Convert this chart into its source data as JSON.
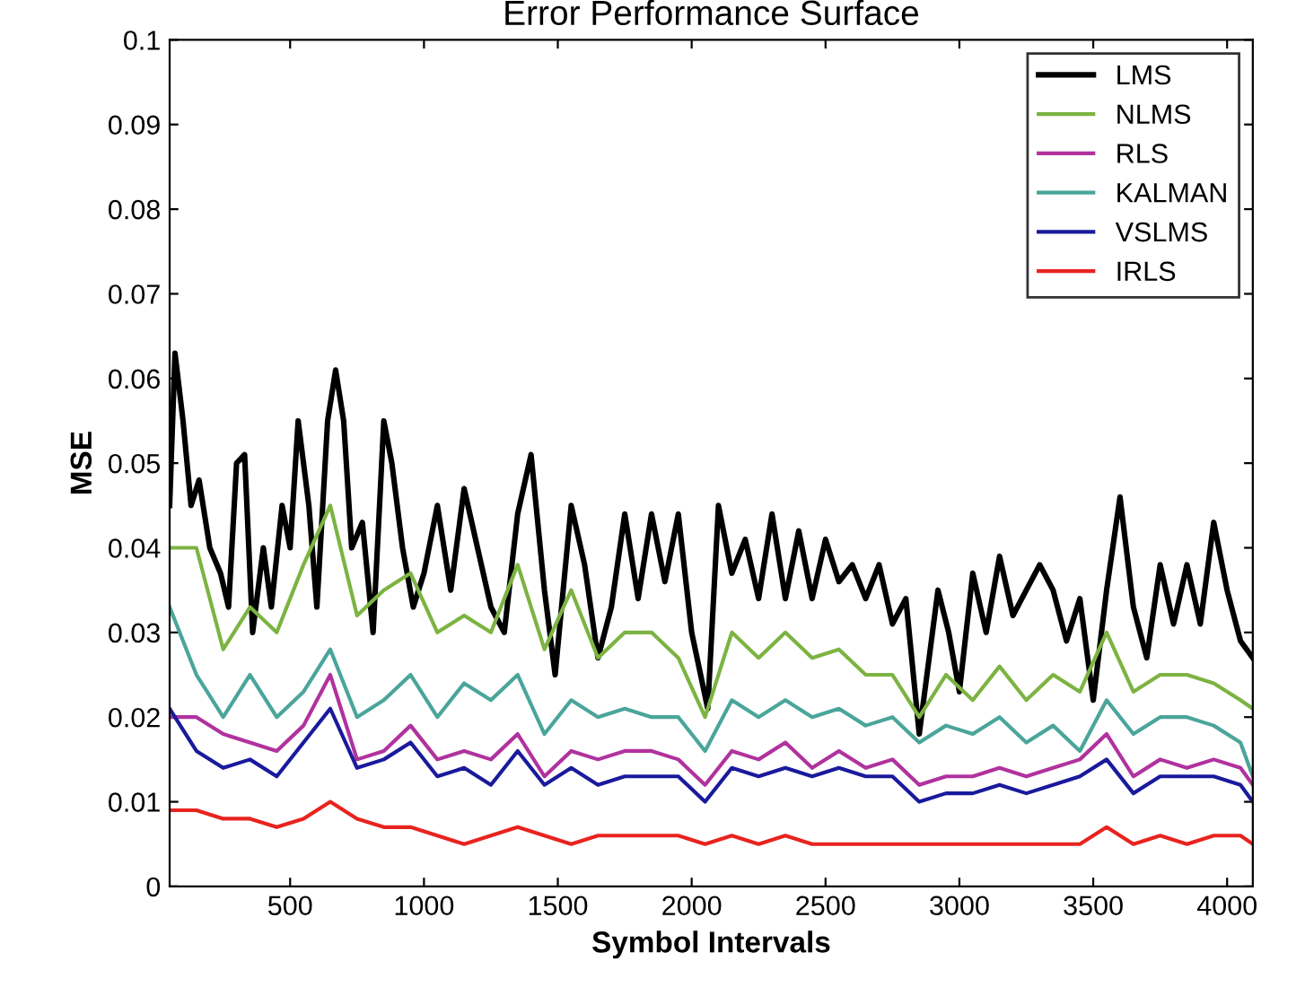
{
  "chart_data": {
    "type": "line",
    "title": "Error Performance Surface",
    "xlabel": "Symbol Intervals",
    "ylabel": "MSE",
    "xlim": [
      50,
      4096
    ],
    "ylim": [
      0,
      0.1
    ],
    "xticks": [
      500,
      1000,
      1500,
      2000,
      2500,
      3000,
      3500,
      4000
    ],
    "yticks": [
      0,
      0.01,
      0.02,
      0.03,
      0.04,
      0.05,
      0.06,
      0.07,
      0.08,
      0.09,
      0.1
    ],
    "grid": false,
    "legend": "top right",
    "marker": "none",
    "line_style": "solid",
    "x": [
      50,
      150,
      250,
      350,
      450,
      550,
      650,
      750,
      850,
      950,
      1050,
      1150,
      1250,
      1350,
      1450,
      1550,
      1650,
      1750,
      1850,
      1950,
      2050,
      2150,
      2250,
      2350,
      2450,
      2550,
      2650,
      2750,
      2850,
      2950,
      3050,
      3150,
      3250,
      3350,
      3450,
      3550,
      3650,
      3750,
      3850,
      3950,
      4050,
      4096
    ],
    "series": [
      {
        "name": "LMS",
        "color": "#000000",
        "x": [
          50,
          70,
          100,
          130,
          160,
          200,
          240,
          270,
          300,
          330,
          360,
          400,
          430,
          470,
          500,
          530,
          570,
          600,
          640,
          670,
          700,
          730,
          770,
          810,
          850,
          880,
          920,
          960,
          1000,
          1050,
          1100,
          1150,
          1200,
          1250,
          1300,
          1350,
          1400,
          1450,
          1490,
          1550,
          1600,
          1650,
          1700,
          1750,
          1800,
          1850,
          1900,
          1950,
          2000,
          2060,
          2100,
          2150,
          2200,
          2250,
          2300,
          2350,
          2400,
          2450,
          2500,
          2550,
          2600,
          2650,
          2700,
          2750,
          2800,
          2850,
          2920,
          2960,
          3000,
          3050,
          3100,
          3150,
          3200,
          3250,
          3300,
          3350,
          3400,
          3450,
          3500,
          3550,
          3600,
          3650,
          3700,
          3750,
          3800,
          3850,
          3900,
          3950,
          4000,
          4050,
          4096
        ],
        "values": [
          0.045,
          0.063,
          0.055,
          0.045,
          0.048,
          0.04,
          0.037,
          0.033,
          0.05,
          0.051,
          0.03,
          0.04,
          0.033,
          0.045,
          0.04,
          0.055,
          0.045,
          0.033,
          0.055,
          0.061,
          0.055,
          0.04,
          0.043,
          0.03,
          0.055,
          0.05,
          0.04,
          0.033,
          0.037,
          0.045,
          0.035,
          0.047,
          0.04,
          0.033,
          0.03,
          0.044,
          0.051,
          0.035,
          0.025,
          0.045,
          0.038,
          0.027,
          0.033,
          0.044,
          0.034,
          0.044,
          0.036,
          0.044,
          0.03,
          0.021,
          0.045,
          0.037,
          0.041,
          0.034,
          0.044,
          0.034,
          0.042,
          0.034,
          0.041,
          0.036,
          0.038,
          0.034,
          0.038,
          0.031,
          0.034,
          0.018,
          0.035,
          0.03,
          0.023,
          0.037,
          0.03,
          0.039,
          0.032,
          0.035,
          0.038,
          0.035,
          0.029,
          0.034,
          0.022,
          0.035,
          0.046,
          0.033,
          0.027,
          0.038,
          0.031,
          0.038,
          0.031,
          0.043,
          0.035,
          0.029,
          0.027
        ]
      },
      {
        "name": "NLMS",
        "color": "#7cb342",
        "values": [
          0.04,
          0.04,
          0.028,
          0.033,
          0.03,
          0.038,
          0.045,
          0.032,
          0.035,
          0.037,
          0.03,
          0.032,
          0.03,
          0.038,
          0.028,
          0.035,
          0.027,
          0.03,
          0.03,
          0.027,
          0.02,
          0.03,
          0.027,
          0.03,
          0.027,
          0.028,
          0.025,
          0.025,
          0.02,
          0.025,
          0.022,
          0.026,
          0.022,
          0.025,
          0.023,
          0.03,
          0.023,
          0.025,
          0.025,
          0.024,
          0.022,
          0.021
        ]
      },
      {
        "name": "RLS",
        "color": "#b0329e",
        "values": [
          0.02,
          0.02,
          0.018,
          0.017,
          0.016,
          0.019,
          0.025,
          0.015,
          0.016,
          0.019,
          0.015,
          0.016,
          0.015,
          0.018,
          0.013,
          0.016,
          0.015,
          0.016,
          0.016,
          0.015,
          0.012,
          0.016,
          0.015,
          0.017,
          0.014,
          0.016,
          0.014,
          0.015,
          0.012,
          0.013,
          0.013,
          0.014,
          0.013,
          0.014,
          0.015,
          0.018,
          0.013,
          0.015,
          0.014,
          0.015,
          0.014,
          0.012
        ]
      },
      {
        "name": "KALMAN",
        "color": "#4aa59a",
        "values": [
          0.033,
          0.025,
          0.02,
          0.025,
          0.02,
          0.023,
          0.028,
          0.02,
          0.022,
          0.025,
          0.02,
          0.024,
          0.022,
          0.025,
          0.018,
          0.022,
          0.02,
          0.021,
          0.02,
          0.02,
          0.016,
          0.022,
          0.02,
          0.022,
          0.02,
          0.021,
          0.019,
          0.02,
          0.017,
          0.019,
          0.018,
          0.02,
          0.017,
          0.019,
          0.016,
          0.022,
          0.018,
          0.02,
          0.02,
          0.019,
          0.017,
          0.013
        ]
      },
      {
        "name": "VSLMS",
        "color": "#1a1a9c",
        "values": [
          0.021,
          0.016,
          0.014,
          0.015,
          0.013,
          0.017,
          0.021,
          0.014,
          0.015,
          0.017,
          0.013,
          0.014,
          0.012,
          0.016,
          0.012,
          0.014,
          0.012,
          0.013,
          0.013,
          0.013,
          0.01,
          0.014,
          0.013,
          0.014,
          0.013,
          0.014,
          0.013,
          0.013,
          0.01,
          0.011,
          0.011,
          0.012,
          0.011,
          0.012,
          0.013,
          0.015,
          0.011,
          0.013,
          0.013,
          0.013,
          0.012,
          0.01
        ]
      },
      {
        "name": "IRLS",
        "color": "#e8231e",
        "values": [
          0.009,
          0.009,
          0.008,
          0.008,
          0.007,
          0.008,
          0.01,
          0.008,
          0.007,
          0.007,
          0.006,
          0.005,
          0.006,
          0.007,
          0.006,
          0.005,
          0.006,
          0.006,
          0.006,
          0.006,
          0.005,
          0.006,
          0.005,
          0.006,
          0.005,
          0.005,
          0.005,
          0.005,
          0.005,
          0.005,
          0.005,
          0.005,
          0.005,
          0.005,
          0.005,
          0.007,
          0.005,
          0.006,
          0.005,
          0.006,
          0.006,
          0.005
        ]
      }
    ]
  }
}
